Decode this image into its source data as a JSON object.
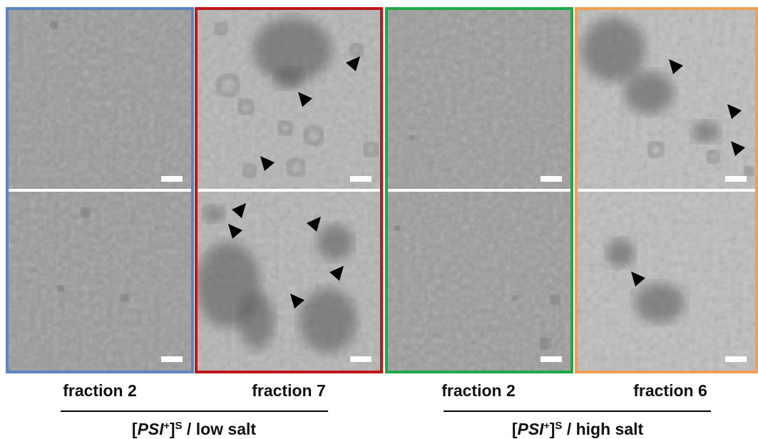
{
  "panels": [
    {
      "label": "fraction 2"
    },
    {
      "label": "fraction 7"
    },
    {
      "label": "fraction 2"
    },
    {
      "label": "fraction 6"
    }
  ],
  "groups": [
    {
      "label": {
        "open": "[",
        "italic": "PSI",
        "sup1": "+",
        "close": "]",
        "sup2": "S",
        "rest": " / low salt"
      }
    },
    {
      "label": {
        "open": "[",
        "italic": "PSI",
        "sup1": "+",
        "close": "]",
        "sup2": "S",
        "rest": " / high salt"
      }
    }
  ]
}
